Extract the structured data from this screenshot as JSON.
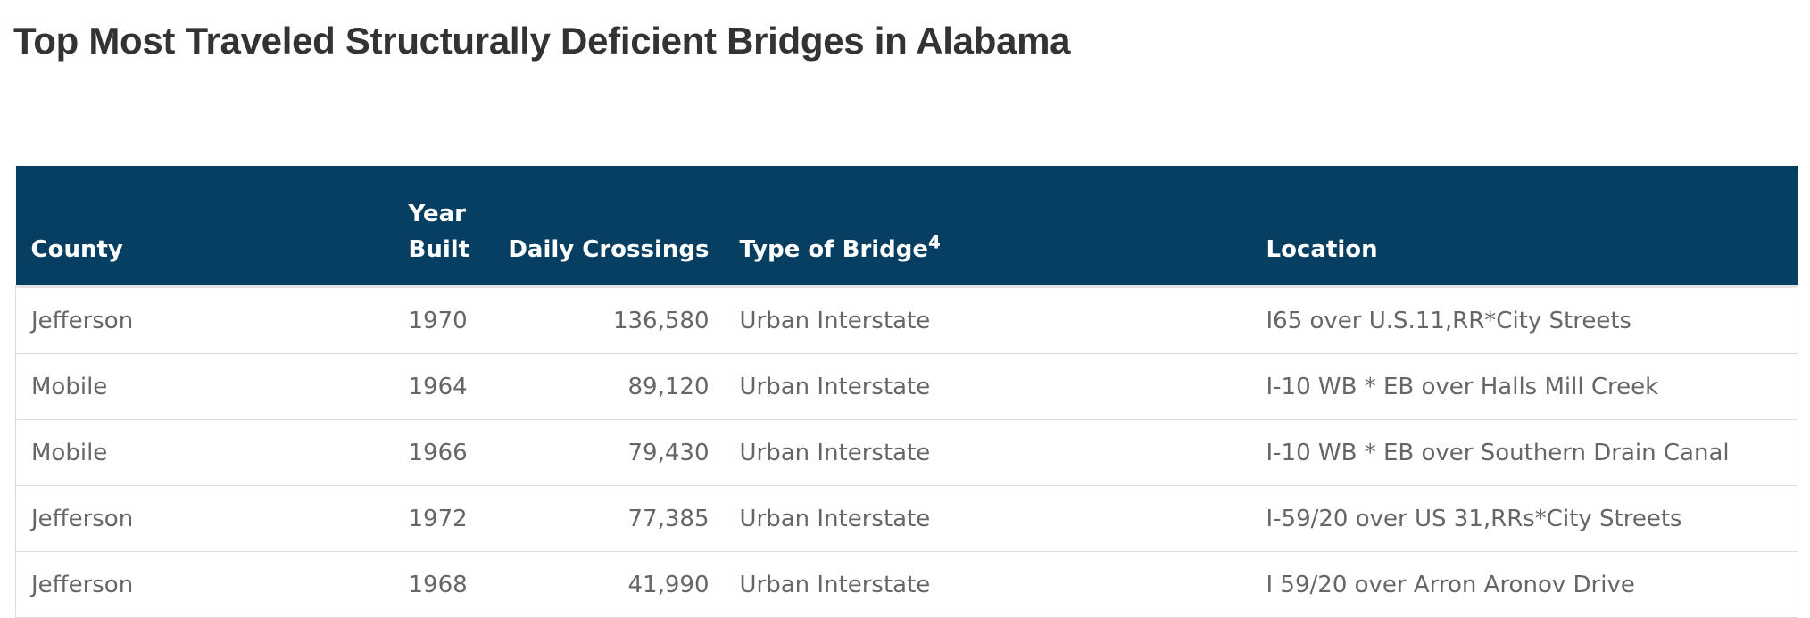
{
  "header": {
    "title": "Top Most Traveled Structurally Deficient Bridges in Alabama"
  },
  "table": {
    "columns": [
      {
        "label": "County"
      },
      {
        "label": "Year Built"
      },
      {
        "label": "Daily Crossings"
      },
      {
        "label": "Type of Bridge",
        "note": "4"
      },
      {
        "label": "Location"
      }
    ],
    "rows": [
      [
        "Jefferson",
        "1970",
        "136,580",
        "Urban Interstate",
        "I65 over U.S.11,RR*City Streets"
      ],
      [
        "Mobile",
        "1964",
        "89,120",
        "Urban Interstate",
        "I-10 WB * EB over Halls Mill Creek"
      ],
      [
        "Mobile",
        "1966",
        "79,430",
        "Urban Interstate",
        "I-10 WB * EB over Southern Drain Canal"
      ],
      [
        "Jefferson",
        "1972",
        "77,385",
        "Urban Interstate",
        "I-59/20 over US 31,RRs*City Streets"
      ],
      [
        "Jefferson",
        "1968",
        "41,990",
        "Urban Interstate",
        "I 59/20 over Arron Aronov Drive"
      ]
    ]
  }
}
